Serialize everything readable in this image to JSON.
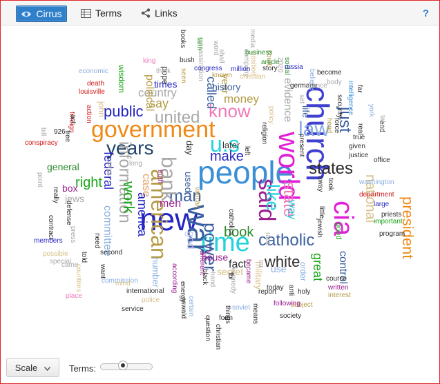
{
  "toolbar": {
    "tabs": [
      {
        "label": "Cirrus",
        "icon": "eye-icon",
        "active": true
      },
      {
        "label": "Terms",
        "icon": "table-icon",
        "active": false
      },
      {
        "label": "Links",
        "icon": "share-icon",
        "active": false
      }
    ],
    "help": "?"
  },
  "cloud": {
    "words": [
      {
        "t": "people",
        "c": "#3a8fd6"
      },
      {
        "t": "new",
        "c": "#2525c2"
      },
      {
        "t": "government",
        "c": "#f08a17"
      },
      {
        "t": "church",
        "c": "#4040d0"
      },
      {
        "t": "world",
        "c": "#e020d8"
      },
      {
        "t": "cia",
        "c": "#e020d8"
      },
      {
        "t": "time",
        "c": "#22d3dd"
      },
      {
        "t": "catholic",
        "c": "#3a5fa0"
      },
      {
        "t": "war",
        "c": "#3a5fa0"
      },
      {
        "t": "years",
        "c": "#22446a"
      },
      {
        "t": "u.s",
        "c": "#22d3dd"
      },
      {
        "t": "american",
        "c": "#b59b45"
      },
      {
        "t": "states",
        "c": "#2d2d2d"
      },
      {
        "t": "man",
        "c": "#3a5fa0"
      },
      {
        "t": "said",
        "c": "#9a2090"
      },
      {
        "t": "power",
        "c": "#3a5fa0"
      },
      {
        "t": "president",
        "c": "#f08a17"
      },
      {
        "t": "like",
        "c": "#22d3dd"
      },
      {
        "t": "know",
        "c": "#f07ab8"
      },
      {
        "t": "law",
        "c": "#8aaee0"
      },
      {
        "t": "public",
        "c": "#2525c2"
      },
      {
        "t": "united",
        "c": "#a8a8a8"
      },
      {
        "t": "bank",
        "c": "#a8a8a8"
      },
      {
        "t": "information",
        "c": "#a8a8a8"
      },
      {
        "t": "national",
        "c": "#d6c087"
      },
      {
        "t": "right",
        "c": "#17a817"
      },
      {
        "t": "book",
        "c": "#2b8a2b"
      },
      {
        "t": "make",
        "c": "#2525c2"
      },
      {
        "t": "white",
        "c": "#2d2d2d"
      },
      {
        "t": "state",
        "c": "#f07ab8"
      },
      {
        "t": "just",
        "c": "#3a5fa0"
      },
      {
        "t": "great",
        "c": "#17a817"
      },
      {
        "t": "work",
        "c": "#17a817"
      },
      {
        "t": "god",
        "c": "#c9c6f0"
      },
      {
        "t": "money",
        "c": "#b59b45"
      },
      {
        "t": "say",
        "c": "#b59b45"
      },
      {
        "t": "country",
        "c": "#a8a8a8"
      },
      {
        "t": "evidence",
        "c": "#a8a8a8"
      },
      {
        "t": "life",
        "c": "#3a5fa0"
      },
      {
        "t": "way",
        "c": "#22d3dd"
      },
      {
        "t": "control",
        "c": "#3a5fa0"
      },
      {
        "t": "case",
        "c": "#e8a060"
      },
      {
        "t": "federal",
        "c": "#2525c2"
      },
      {
        "t": "fact",
        "c": "#2d2d2d"
      },
      {
        "t": "men",
        "c": "#9a2090"
      },
      {
        "t": "house",
        "c": "#9a2090"
      },
      {
        "t": "secret",
        "c": "#d6c087"
      },
      {
        "t": "committee",
        "c": "#8aaee0"
      },
      {
        "t": "called",
        "c": "#3a5fa0"
      },
      {
        "t": "political",
        "c": "#b59b45"
      },
      {
        "t": "times",
        "c": "#2525c2"
      },
      {
        "t": "year",
        "c": "#b59b45"
      },
      {
        "t": "history",
        "c": "#3a5fa0"
      },
      {
        "t": "used",
        "c": "#3a5fa0"
      },
      {
        "t": "box",
        "c": "#9a2090"
      },
      {
        "t": "general",
        "c": "#2b8a2b"
      },
      {
        "t": "jews",
        "c": "#a8a8a8"
      },
      {
        "t": "later",
        "c": "#2d2d2d"
      },
      {
        "t": "day",
        "c": "#2d2d2d"
      },
      {
        "t": "use",
        "c": "#8aaee0"
      },
      {
        "t": "number",
        "c": "#8aaee0"
      },
      {
        "t": "military",
        "c": "#d6c087"
      },
      {
        "t": "good",
        "c": "#17a817"
      },
      {
        "t": "order",
        "c": "#8aaee0"
      },
      {
        "t": "wisdom",
        "c": "#17a817"
      },
      {
        "t": "john",
        "c": "#d6c087"
      },
      {
        "t": "pope",
        "c": "#2d2d2d"
      },
      {
        "t": "america",
        "c": "#2525c2"
      },
      {
        "t": "conspiracy",
        "c": "#d01818"
      },
      {
        "t": "foreign",
        "c": "#d01818"
      },
      {
        "t": "death",
        "c": "#d01818"
      },
      {
        "t": "louisville",
        "c": "#d01818"
      },
      {
        "t": "economic",
        "c": "#8aaee0"
      },
      {
        "t": "action",
        "c": "#d01818"
      },
      {
        "t": "king",
        "c": "#f07ab8"
      },
      {
        "t": "books",
        "c": "#2d2d2d"
      },
      {
        "t": "bush",
        "c": "#2d2d2d"
      },
      {
        "t": "think",
        "c": "#a8a8a8"
      },
      {
        "t": "seen",
        "c": "#b59b45"
      },
      {
        "t": "faith",
        "c": "#17a817"
      },
      {
        "t": "assassination",
        "c": "#a8a8a8"
      },
      {
        "t": "word",
        "c": "#a8a8a8"
      },
      {
        "t": "shall",
        "c": "#a8a8a8"
      },
      {
        "t": "company",
        "c": "#a8a8a8"
      },
      {
        "t": "media",
        "c": "#a8a8a8"
      },
      {
        "t": "position",
        "c": "#d6c087"
      },
      {
        "t": "court",
        "c": "#b59b45"
      },
      {
        "t": "business",
        "c": "#2b8a2b"
      },
      {
        "t": "social",
        "c": "#2b8a2b"
      },
      {
        "t": "congress",
        "c": "#2525c2"
      },
      {
        "t": "million",
        "c": "#2525c2"
      },
      {
        "t": "article",
        "c": "#2b8a2b"
      },
      {
        "t": "story",
        "c": "#2d2d2d"
      },
      {
        "t": "russia",
        "c": "#2525c2"
      },
      {
        "t": "become",
        "c": "#2d2d2d"
      },
      {
        "t": "believe",
        "c": "#8aaee0"
      },
      {
        "t": "known",
        "c": "#b59b45"
      },
      {
        "t": "christian",
        "c": "#d6c087"
      },
      {
        "t": "germany",
        "c": "#2d2d2d"
      },
      {
        "t": "body",
        "c": "#a8a8a8"
      },
      {
        "t": "york",
        "c": "#8aaee0"
      },
      {
        "t": "france",
        "c": "#a8a8a8"
      },
      {
        "t": "intelligence",
        "c": "#3a8fd6"
      },
      {
        "t": "security",
        "c": "#2d2d2d"
      },
      {
        "t": "force",
        "c": "#2d2d2d"
      },
      {
        "t": "true",
        "c": "#2d2d2d"
      },
      {
        "t": "given",
        "c": "#2d2d2d"
      },
      {
        "t": "justice",
        "c": "#2d2d2d"
      },
      {
        "t": "office",
        "c": "#2d2d2d"
      },
      {
        "t": "washington",
        "c": "#8aaee0"
      },
      {
        "t": "department",
        "c": "#d01818"
      },
      {
        "t": "large",
        "c": "#2525c2"
      },
      {
        "t": "priests",
        "c": "#2d2d2d"
      },
      {
        "t": "important",
        "c": "#17a817"
      },
      {
        "t": "program",
        "c": "#2d2d2d"
      },
      {
        "t": "course",
        "c": "#2d2d2d"
      },
      {
        "t": "written",
        "c": "#9a2090"
      },
      {
        "t": "interest",
        "c": "#b59b45"
      },
      {
        "t": "subject",
        "c": "#b59b45"
      },
      {
        "t": "society",
        "c": "#2d2d2d"
      },
      {
        "t": "holy",
        "c": "#2d2d2d"
      },
      {
        "t": "today",
        "c": "#2d2d2d"
      },
      {
        "t": "report",
        "c": "#2d2d2d"
      },
      {
        "t": "following",
        "c": "#9a2090"
      },
      {
        "t": "anti",
        "c": "#2d2d2d"
      },
      {
        "t": "means",
        "c": "#2d2d2d"
      },
      {
        "t": "question",
        "c": "#2d2d2d"
      },
      {
        "t": "form",
        "c": "#2d2d2d"
      },
      {
        "t": "christianity",
        "c": "#2d2d2d"
      },
      {
        "t": "soviet",
        "c": "#8aaee0"
      },
      {
        "t": "oswald",
        "c": "#2d2d2d"
      },
      {
        "t": "international",
        "c": "#2d2d2d"
      },
      {
        "t": "police",
        "c": "#d6c087"
      },
      {
        "t": "place",
        "c": "#f07ab8"
      },
      {
        "t": "commission",
        "c": "#8aaee0"
      },
      {
        "t": "service",
        "c": "#2d2d2d"
      },
      {
        "t": "mind",
        "c": "#d6c087"
      },
      {
        "t": "countries",
        "c": "#d6c087"
      },
      {
        "t": "want",
        "c": "#2d2d2d"
      },
      {
        "t": "came",
        "c": "#a8a8a8"
      },
      {
        "t": "possible",
        "c": "#d6c087"
      },
      {
        "t": "second",
        "c": "#2d2d2d"
      },
      {
        "t": "members",
        "c": "#2525c2"
      },
      {
        "t": "special",
        "c": "#a8a8a8"
      },
      {
        "t": "it's",
        "c": "#9a2090"
      },
      {
        "t": "different",
        "c": "#9a2090"
      },
      {
        "t": "became",
        "c": "#9a2090"
      },
      {
        "t": "kennedy",
        "c": "#a8a8a8"
      },
      {
        "t": "catholics",
        "c": "#2d2d2d"
      },
      {
        "t": "vatican",
        "c": "#b59b45"
      },
      {
        "t": "truth",
        "c": "#9a2090"
      },
      {
        "t": "says",
        "c": "#a8a8a8"
      },
      {
        "t": "long",
        "c": "#a8a8a8"
      },
      {
        "t": "press",
        "c": "#a8a8a8"
      },
      {
        "t": "need",
        "c": "#2d2d2d"
      },
      {
        "t": "race",
        "c": "#a8a8a8"
      },
      {
        "t": "left",
        "c": "#2d2d2d"
      },
      {
        "t": "away",
        "c": "#2d2d2d"
      },
      {
        "t": "took",
        "c": "#2d2d2d"
      },
      {
        "t": "little",
        "c": "#2d2d2d"
      },
      {
        "t": "jewish",
        "c": "#2d2d2d"
      },
      {
        "t": "act",
        "c": "#2d2d2d"
      },
      {
        "t": "bill",
        "c": "#a8a8a8"
      },
      {
        "t": "926",
        "c": "#2d2d2d"
      },
      {
        "t": "point",
        "c": "#a8a8a8"
      },
      {
        "t": "really",
        "c": "#2d2d2d"
      },
      {
        "t": "contract",
        "c": "#2d2d2d"
      },
      {
        "t": "defense",
        "c": "#2d2d2d"
      },
      {
        "t": "according",
        "c": "#9a2090"
      },
      {
        "t": "certain",
        "c": "#8aaee0"
      },
      {
        "t": "energy",
        "c": "#2d2d2d"
      },
      {
        "t": "things",
        "c": "#2d2d2d"
      },
      {
        "t": "black",
        "c": "#2d2d2d"
      },
      {
        "t": "hand",
        "c": "#a8a8a8"
      },
      {
        "t": "fbi",
        "c": "#2d2d2d"
      },
      {
        "t": "mr",
        "c": "#a8a8a8"
      },
      {
        "t": "real",
        "c": "#2d2d2d"
      },
      {
        "t": "far",
        "c": "#2d2d2d"
      },
      {
        "t": "end",
        "c": "#2d2d2d"
      },
      {
        "t": "taken",
        "c": "#a8a8a8"
      },
      {
        "t": "head",
        "c": "#b59b45"
      },
      {
        "t": "present",
        "c": "#2d2d2d"
      },
      {
        "t": "policy",
        "c": "#d6c087"
      },
      {
        "t": "religion",
        "c": "#2d2d2d"
      },
      {
        "t": "free",
        "c": "#2d2d2d"
      },
      {
        "t": "told",
        "c": "#2d2d2d"
      },
      {
        "t": "set",
        "c": "#a8a8a8"
      },
      {
        "t": "2020",
        "c": "#a8a8a8"
      },
      {
        "t": "century",
        "c": "#2d2d2d"
      },
      {
        "t": "city",
        "c": "#2d2d2d"
      },
      {
        "t": "gang",
        "c": "#a8a8a8"
      },
      {
        "t": "read",
        "c": "#2d2d2d"
      },
      {
        "t": "tax",
        "c": "#2d2d2d"
      }
    ]
  },
  "footer": {
    "scale_label": "Scale",
    "terms_label": "Terms:",
    "terms_slider_fraction": 0.42
  }
}
